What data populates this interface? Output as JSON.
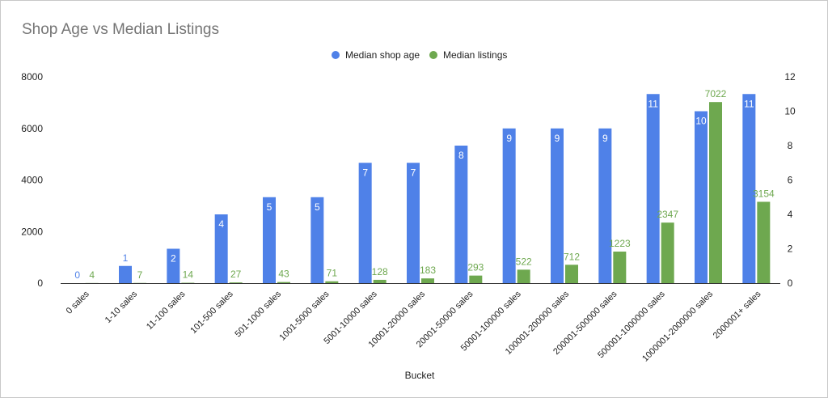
{
  "chart_data": {
    "type": "bar",
    "title": "Shop Age vs Median Listings",
    "xlabel": "Bucket",
    "ylabel_left": "",
    "ylabel_right": "",
    "legend_position": "top-center",
    "grid": false,
    "categories": [
      "0 sales",
      "1-10 sales",
      "11-100 sales",
      "101-500 sales",
      "501-1000 sales",
      "1001-5000 sales",
      "5001-10000 sales",
      "10001-20000 sales",
      "20001-50000 sales",
      "50001-100000 sales",
      "100001-200000 sales",
      "200001-500000 sales",
      "500001-1000000 sales",
      "1000001-2000000 sales",
      "2000001+ sales"
    ],
    "series": [
      {
        "name": "Median shop age",
        "axis": "right",
        "color": "#4f81e8",
        "values": [
          0,
          1,
          2,
          4,
          5,
          5,
          7,
          7,
          8,
          9,
          9,
          9,
          11,
          10,
          11
        ]
      },
      {
        "name": "Median listings",
        "axis": "left",
        "color": "#6ea84f",
        "values": [
          4,
          7,
          14,
          27,
          43,
          71,
          128,
          183,
          293,
          522,
          712,
          1223,
          2347,
          7022,
          3154
        ]
      }
    ],
    "y_left": {
      "min": 0,
      "max": 8000,
      "ticks": [
        0,
        2000,
        4000,
        6000,
        8000
      ]
    },
    "y_right": {
      "min": 0,
      "max": 12,
      "ticks": [
        0,
        2,
        4,
        6,
        8,
        10,
        12
      ]
    }
  }
}
